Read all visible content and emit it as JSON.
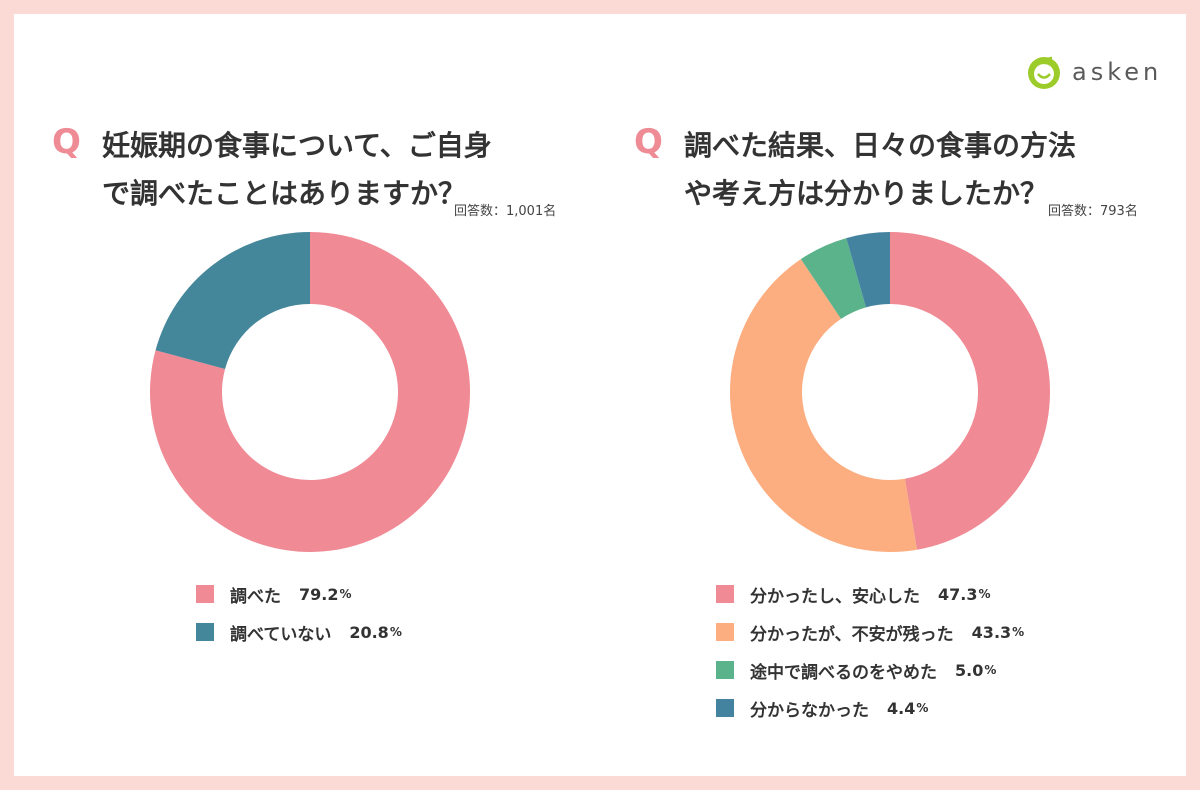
{
  "brand": {
    "name": "asken"
  },
  "colors": {
    "background": "#fbd9d5",
    "accent": "#ee8b95",
    "pink": "#f08a95",
    "teal": "#44869a",
    "orange": "#fcae80",
    "green": "#5bb38b",
    "blue": "#43839f"
  },
  "q_mark": "Q",
  "chart_data": [
    {
      "type": "pie",
      "title_lines": [
        "妊娠期の食事について、ご自身",
        "で調べたことはありますか？"
      ],
      "respondents": "回答数：1,001名",
      "pct_unit": "%",
      "slices": [
        {
          "label": "調べた",
          "value": 79.2,
          "value_text": "79.2",
          "color": "#f08a95"
        },
        {
          "label": "調べていない",
          "value": 20.8,
          "value_text": "20.8",
          "color": "#44869a"
        }
      ]
    },
    {
      "type": "pie",
      "title_lines": [
        "調べた結果、日々の食事の方法",
        "や考え方は分かりましたか？"
      ],
      "respondents": "回答数：793名",
      "pct_unit": "%",
      "slices": [
        {
          "label": "分かったし、安心した",
          "value": 47.3,
          "value_text": "47.3",
          "color": "#f08a95"
        },
        {
          "label": "分かったが、不安が残った",
          "value": 43.3,
          "value_text": "43.3",
          "color": "#fcae80"
        },
        {
          "label": "途中で調べるのをやめた",
          "value": 5.0,
          "value_text": "5.0",
          "color": "#5bb38b"
        },
        {
          "label": "分からなかった",
          "value": 4.4,
          "value_text": "4.4",
          "color": "#43839f"
        }
      ]
    }
  ]
}
